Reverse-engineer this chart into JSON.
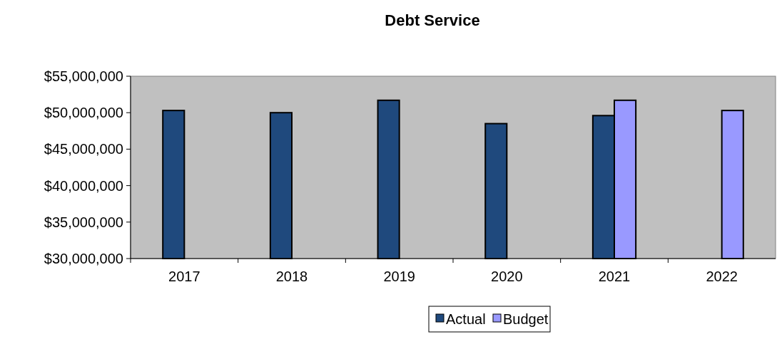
{
  "chart_data": {
    "type": "bar",
    "title": "Debt Service",
    "categories": [
      "2017",
      "2018",
      "2019",
      "2020",
      "2021",
      "2022"
    ],
    "series": [
      {
        "name": "Actual",
        "color": "#1f497d",
        "values": [
          50300000,
          50000000,
          51700000,
          48500000,
          49600000,
          null
        ]
      },
      {
        "name": "Budget",
        "color": "#9999ff",
        "values": [
          null,
          null,
          null,
          null,
          51700000,
          50300000
        ]
      }
    ],
    "ylim": [
      30000000,
      55000000
    ],
    "yticks": [
      {
        "value": 30000000,
        "label": "$30,000,000"
      },
      {
        "value": 35000000,
        "label": "$35,000,000"
      },
      {
        "value": 40000000,
        "label": "$40,000,000"
      },
      {
        "value": 45000000,
        "label": "$45,000,000"
      },
      {
        "value": 50000000,
        "label": "$50,000,000"
      },
      {
        "value": 55000000,
        "label": "$55,000,000"
      }
    ],
    "grid": false,
    "legend": "bottom"
  }
}
